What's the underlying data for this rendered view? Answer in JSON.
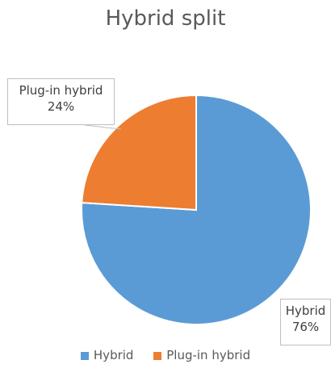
{
  "chart_data": {
    "type": "pie",
    "title": "Hybrid split",
    "categories": [
      "Hybrid",
      "Plug-in hybrid"
    ],
    "values": [
      76,
      24
    ],
    "value_unit": "%",
    "colors": [
      "#5B9BD5",
      "#ED7D31"
    ],
    "data_labels": [
      {
        "category": "Hybrid",
        "percent": "76%"
      },
      {
        "category": "Plug-in hybrid",
        "percent": "24%"
      }
    ],
    "legend": {
      "position": "bottom",
      "entries": [
        "Hybrid",
        "Plug-in hybrid"
      ]
    }
  }
}
